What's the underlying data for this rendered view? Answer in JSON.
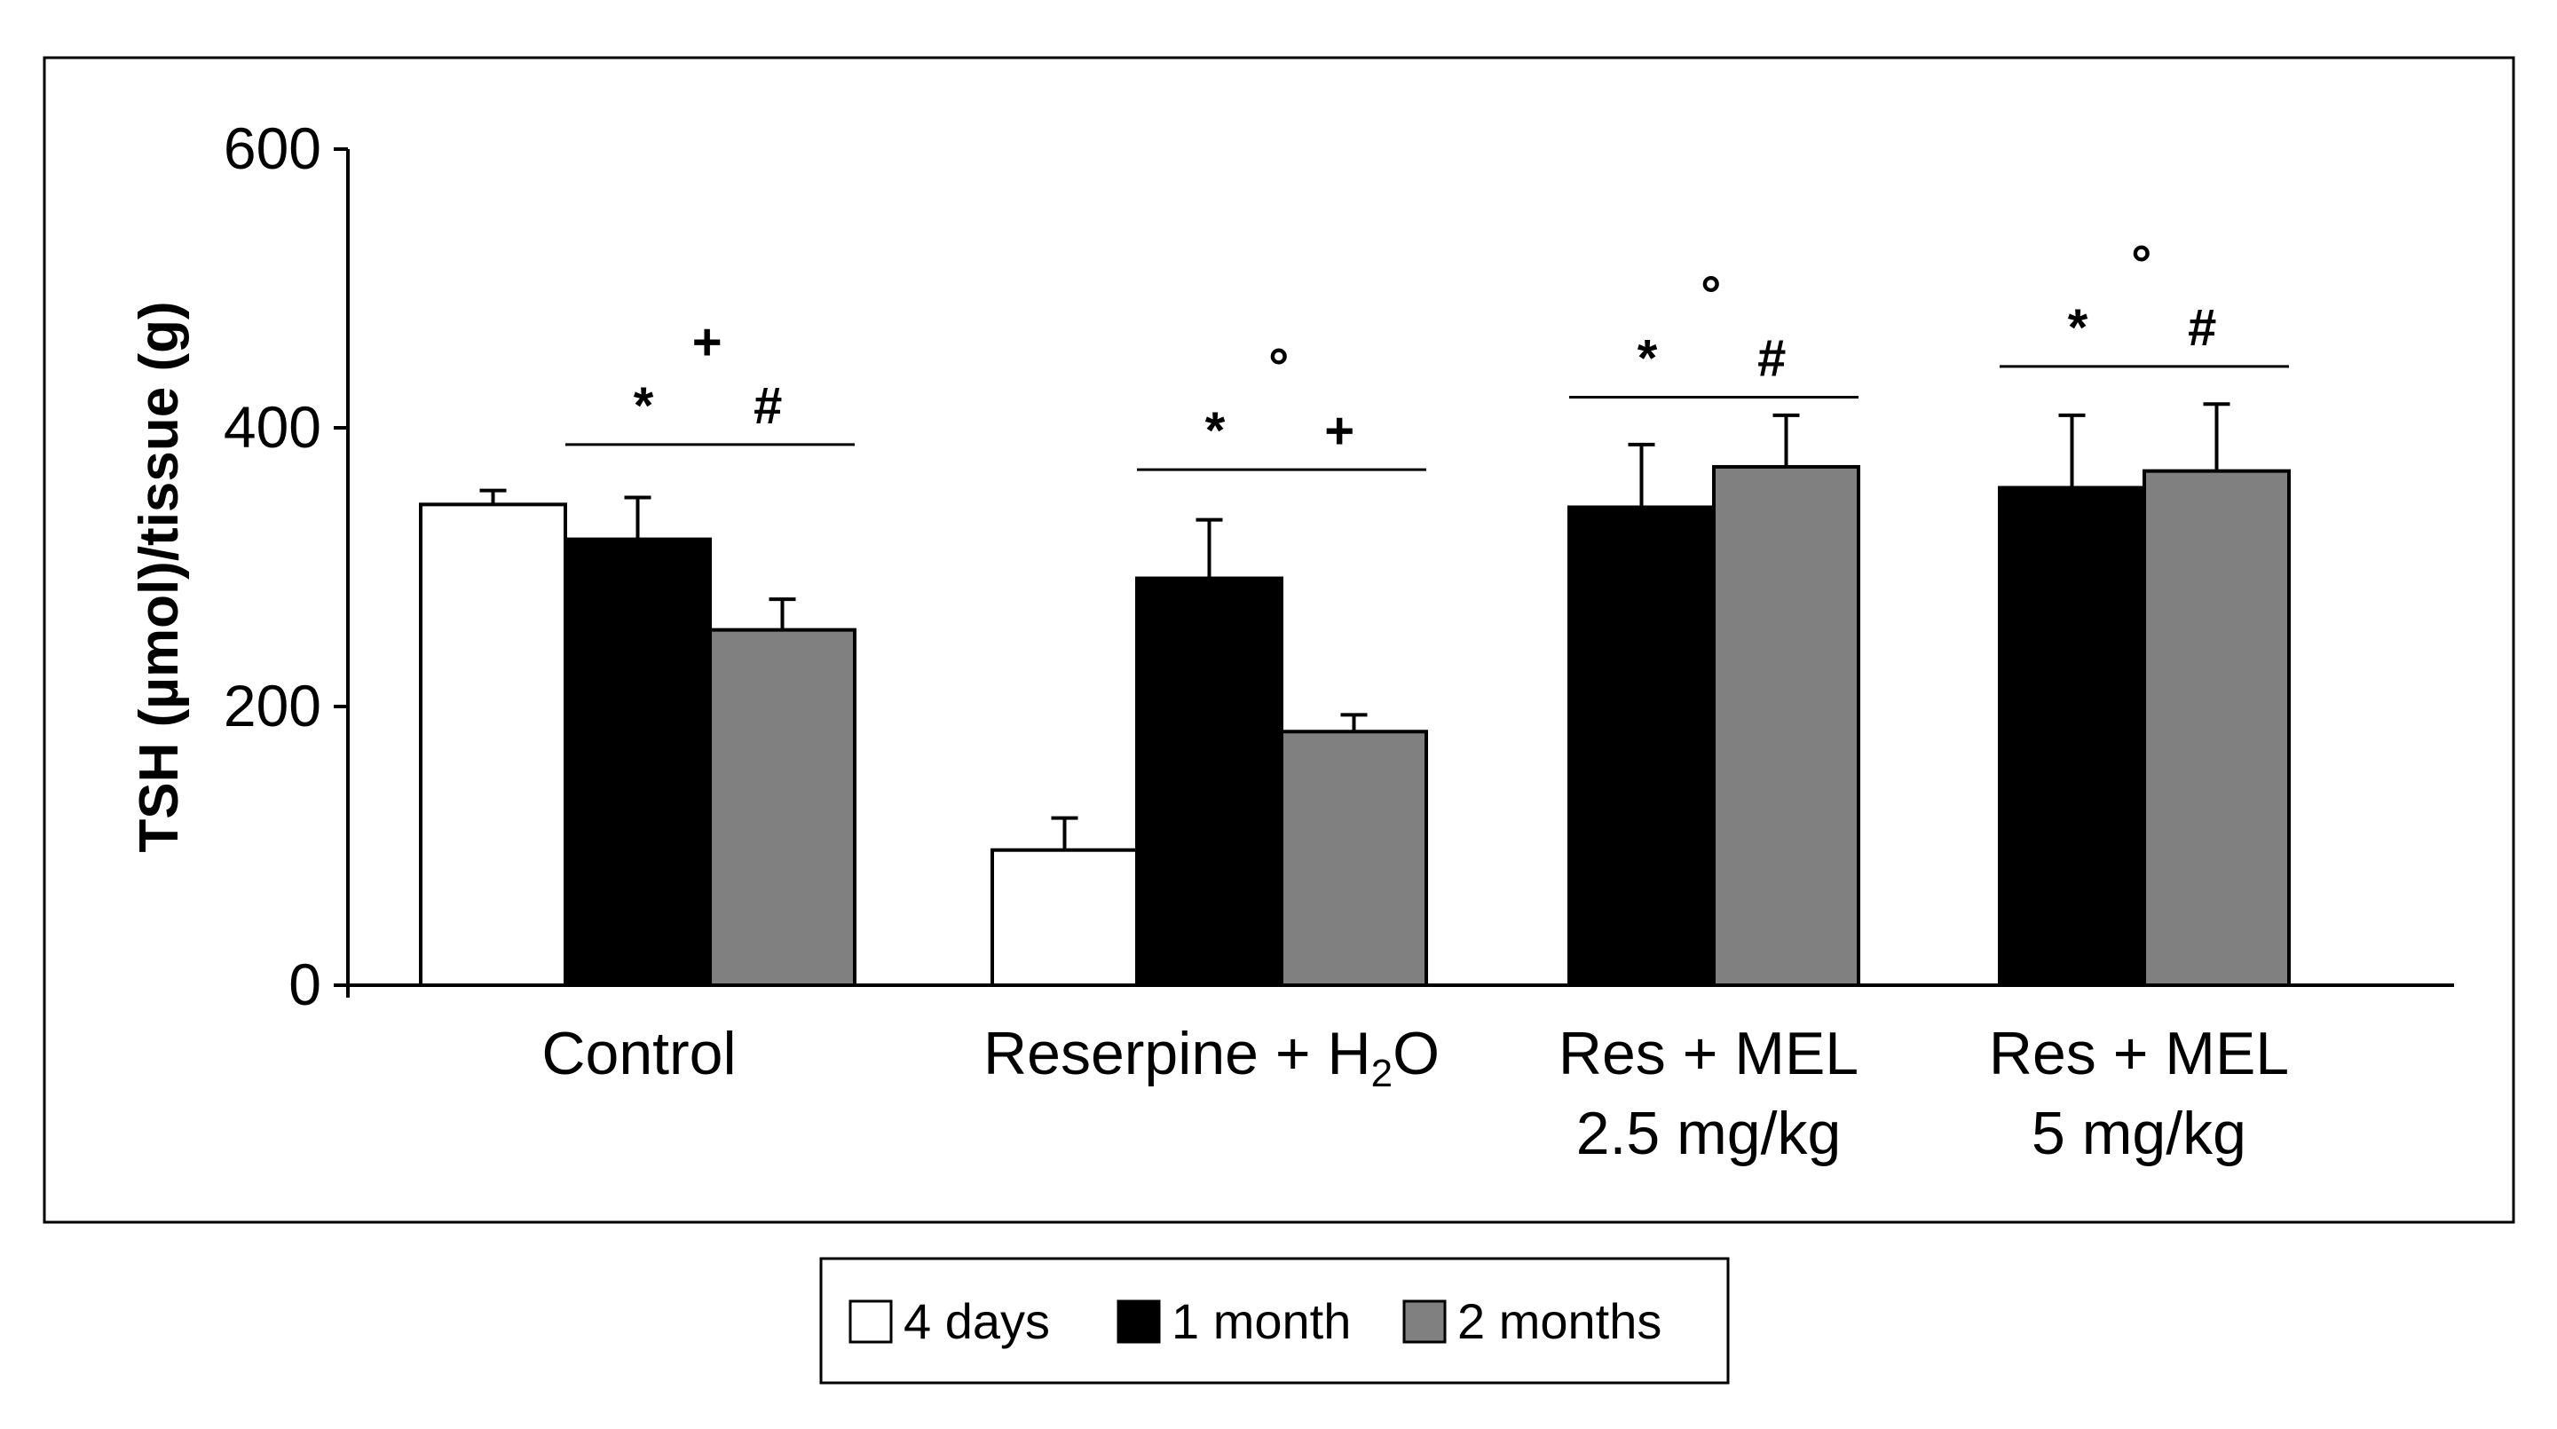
{
  "chart_data": {
    "type": "bar",
    "ylabel": "TSH (µmol)/tissue (g)",
    "ylim": [
      0,
      600
    ],
    "yticks": [
      "0",
      "200",
      "400",
      "600"
    ],
    "groups": [
      {
        "id": "control",
        "label_lines": [
          "Control"
        ],
        "bars": [
          {
            "series": "4 days",
            "value": 345,
            "error": 10
          },
          {
            "series": "1 month",
            "value": 320,
            "error": 30
          },
          {
            "series": "2 months",
            "value": 255,
            "error": 22
          }
        ],
        "significance": {
          "from": "1 month",
          "to": "2 months",
          "rows": [
            [
              "+"
            ],
            [
              "*",
              "#"
            ]
          ],
          "line_value": 388
        }
      },
      {
        "id": "reserpine",
        "label_lines": [
          "Reserpine + H₂O"
        ],
        "bars": [
          {
            "series": "4 days",
            "value": 97,
            "error": 23
          },
          {
            "series": "1 month",
            "value": 292,
            "error": 42
          },
          {
            "series": "2 months",
            "value": 182,
            "error": 12
          }
        ],
        "significance": {
          "from": "1 month",
          "to": "2 months",
          "rows": [
            [
              "°"
            ],
            [
              "*",
              "+"
            ]
          ],
          "line_value": 370
        }
      },
      {
        "id": "res-mel-2-5",
        "label_lines": [
          "Res + MEL",
          "2.5 mg/kg"
        ],
        "bars": [
          {
            "series": "1 month",
            "value": 343,
            "error": 45
          },
          {
            "series": "2 months",
            "value": 372,
            "error": 37
          }
        ],
        "significance": {
          "from": "1 month",
          "to": "2 months",
          "rows": [
            [
              "°"
            ],
            [
              "*",
              "#"
            ]
          ],
          "line_value": 422
        }
      },
      {
        "id": "res-mel-5",
        "label_lines": [
          "Res + MEL",
          "5 mg/kg"
        ],
        "bars": [
          {
            "series": "1 month",
            "value": 357,
            "error": 52
          },
          {
            "series": "2 months",
            "value": 369,
            "error": 48
          }
        ],
        "significance": {
          "from": "1 month",
          "to": "2 months",
          "rows": [
            [
              "°"
            ],
            [
              "*",
              "#"
            ]
          ],
          "line_value": 444
        }
      }
    ],
    "legend": [
      {
        "label": "4 days",
        "color": "#ffffff"
      },
      {
        "label": "1 month",
        "color": "#000000"
      },
      {
        "label": "2 months",
        "color": "#808080"
      }
    ],
    "legend_position": "bottom-center"
  }
}
